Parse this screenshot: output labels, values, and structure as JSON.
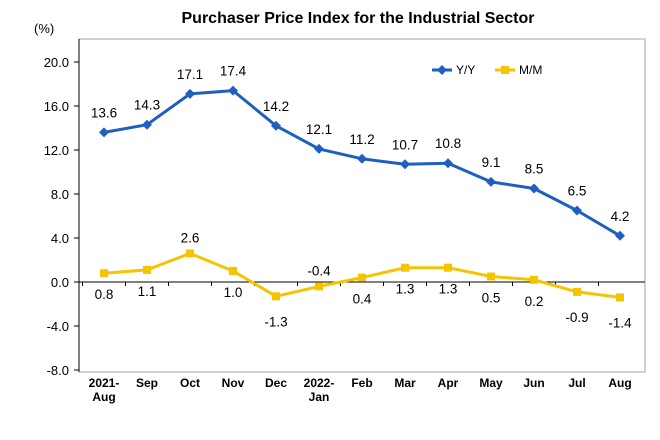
{
  "chart_data": {
    "type": "line",
    "title": "Purchaser Price Index for the Industrial Sector",
    "unit_label": "(%)",
    "categories": [
      [
        "2021-",
        "Aug"
      ],
      [
        "Sep"
      ],
      [
        "Oct"
      ],
      [
        "Nov"
      ],
      [
        "Dec"
      ],
      [
        "2022-",
        "Jan"
      ],
      [
        "Feb"
      ],
      [
        "Mar"
      ],
      [
        "Apr"
      ],
      [
        "May"
      ],
      [
        "Jun"
      ],
      [
        "Jul"
      ],
      [
        "Aug"
      ]
    ],
    "series": [
      {
        "name": "Y/Y",
        "color": "#1f5fc0",
        "marker": "diamond",
        "values": [
          13.6,
          14.3,
          17.1,
          17.4,
          14.2,
          12.1,
          11.2,
          10.7,
          10.8,
          9.1,
          8.5,
          6.5,
          4.2
        ],
        "labels": [
          "13.6",
          "14.3",
          "17.1",
          "17.4",
          "14.2",
          "12.1",
          "11.2",
          "10.7",
          "10.8",
          "9.1",
          "8.5",
          "6.5",
          "4.2"
        ]
      },
      {
        "name": "M/M",
        "color": "#f5c400",
        "marker": "square",
        "values": [
          0.8,
          1.1,
          2.6,
          1.0,
          -1.3,
          -0.4,
          0.4,
          1.3,
          1.3,
          0.5,
          0.2,
          -0.9,
          -1.4
        ],
        "labels": [
          "0.8",
          "1.1",
          "2.6",
          "1.0",
          "-1.3",
          "-0.4",
          "0.4",
          "1.3",
          "1.3",
          "0.5",
          "0.2",
          "-0.9",
          "-1.4"
        ]
      }
    ],
    "ylim": [
      -8.0,
      20.0
    ],
    "yticks": [
      20.0,
      16.0,
      12.0,
      8.0,
      4.0,
      0.0,
      -4.0,
      -8.0
    ],
    "ytick_labels": [
      "20.0",
      "16.0",
      "12.0",
      "8.0",
      "4.0",
      "0.0",
      "-4.0",
      "-8.0"
    ],
    "grid": false,
    "legend_position": "top-right",
    "frame_color": "#a6a6a6"
  }
}
